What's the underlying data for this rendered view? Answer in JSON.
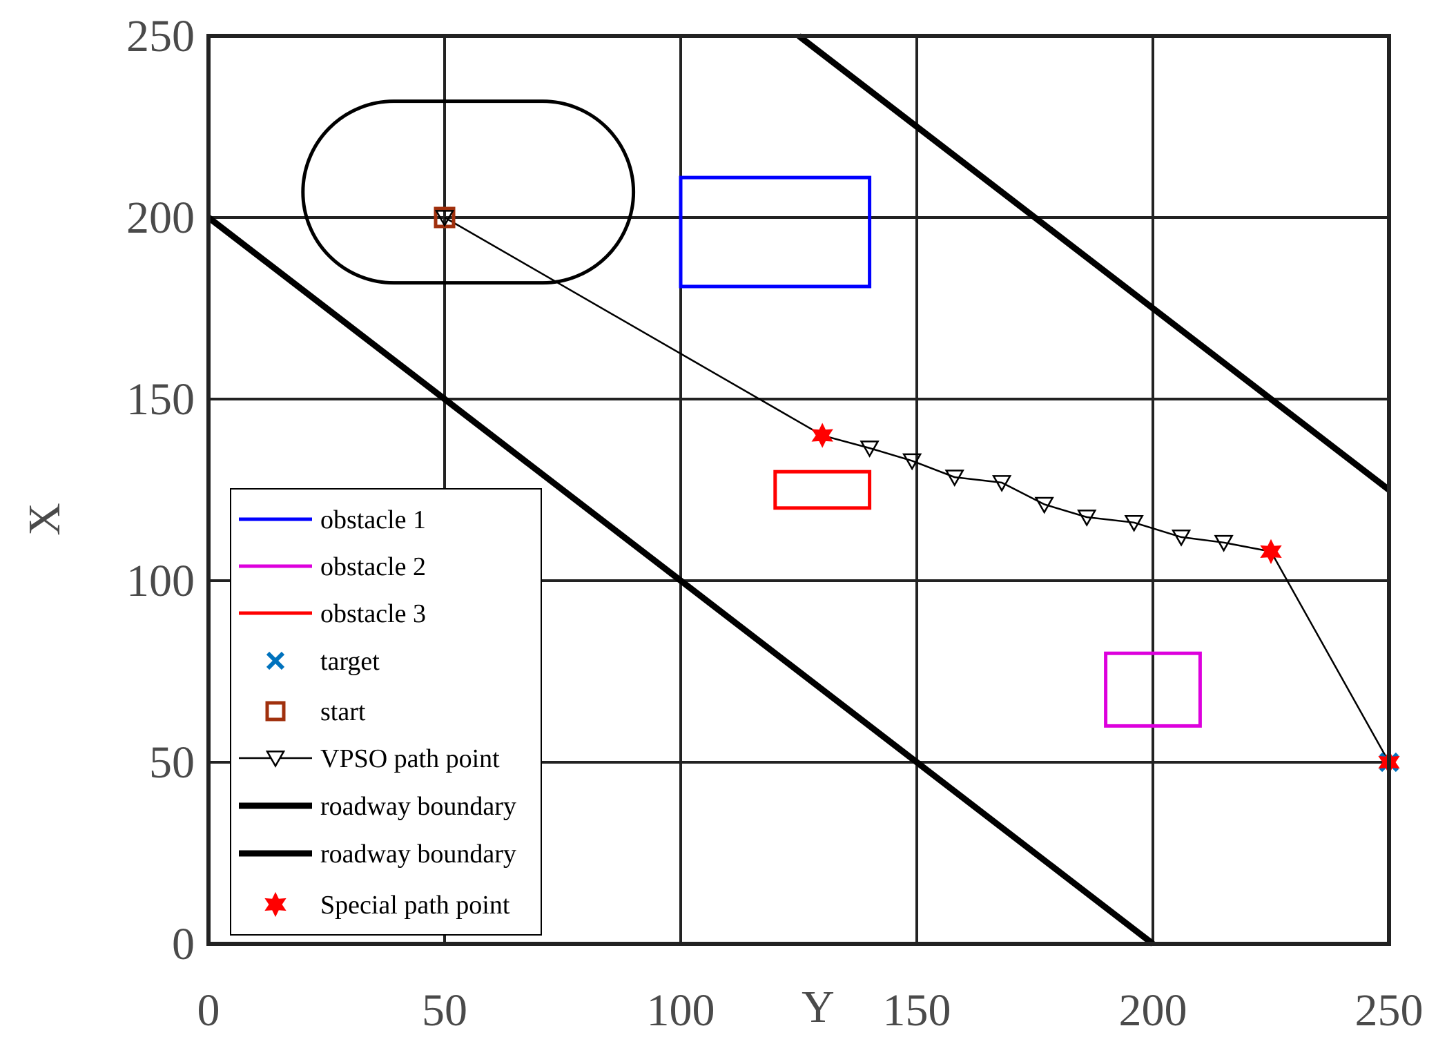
{
  "chart_data": {
    "type": "line",
    "title": "",
    "xlabel": "Y",
    "ylabel": "X",
    "xlim": [
      0,
      250
    ],
    "ylim": [
      0,
      250
    ],
    "xticks": [
      0,
      50,
      100,
      150,
      200,
      250
    ],
    "yticks": [
      0,
      50,
      100,
      150,
      200,
      250
    ],
    "grid": true,
    "legend_position": "lower-left",
    "legend": [
      {
        "key": "obstacle1",
        "label": "obstacle 1",
        "kind": "line",
        "color": "#0000ff"
      },
      {
        "key": "obstacle2",
        "label": "obstacle 2",
        "kind": "line",
        "color": "#dd00dd"
      },
      {
        "key": "obstacle3",
        "label": "obstacle 3",
        "kind": "line",
        "color": "#ff0000"
      },
      {
        "key": "target",
        "label": "target",
        "kind": "x",
        "color": "#0072bd"
      },
      {
        "key": "start",
        "label": "start",
        "kind": "square",
        "color": "#a0300d"
      },
      {
        "key": "path",
        "label": "VPSO path point",
        "kind": "tri",
        "color": "#000000"
      },
      {
        "key": "boundary1",
        "label": "roadway boundary",
        "kind": "thick",
        "color": "#000000"
      },
      {
        "key": "boundary2",
        "label": "roadway boundary",
        "kind": "thick",
        "color": "#000000"
      },
      {
        "key": "special",
        "label": "Special path point",
        "kind": "star",
        "color": "#ff0000"
      }
    ],
    "obstacles": [
      {
        "name": "obstacle 1",
        "color": "#0000ff",
        "y": [
          100,
          140
        ],
        "x": [
          181,
          211
        ]
      },
      {
        "name": "obstacle 2",
        "color": "#dd00dd",
        "y": [
          190,
          210
        ],
        "x": [
          60,
          80
        ]
      },
      {
        "name": "obstacle 3",
        "color": "#ff0000",
        "y": [
          120,
          140
        ],
        "x": [
          120,
          130
        ]
      }
    ],
    "stadium": {
      "y": [
        20,
        90
      ],
      "x": [
        182,
        232
      ]
    },
    "boundaries": [
      {
        "name": "roadway boundary",
        "points": [
          [
            0,
            200
          ],
          [
            200,
            0
          ]
        ]
      },
      {
        "name": "roadway boundary",
        "points": [
          [
            125,
            250
          ],
          [
            250,
            125
          ]
        ]
      }
    ],
    "start": [
      50,
      200
    ],
    "target": [
      250,
      50
    ],
    "path": [
      [
        50,
        200
      ],
      [
        130,
        140
      ],
      [
        140,
        136.5
      ],
      [
        149,
        133
      ],
      [
        158,
        128.5
      ],
      [
        168,
        127
      ],
      [
        177,
        121
      ],
      [
        186,
        117.5
      ],
      [
        196,
        116
      ],
      [
        206,
        112
      ],
      [
        215,
        110.5
      ],
      [
        225,
        108
      ],
      [
        250,
        50
      ]
    ],
    "path_markers": [
      [
        50,
        200
      ],
      [
        140,
        136.5
      ],
      [
        149,
        133
      ],
      [
        158,
        128.5
      ],
      [
        168,
        127
      ],
      [
        177,
        121
      ],
      [
        186,
        117.5
      ],
      [
        196,
        116
      ],
      [
        206,
        112
      ],
      [
        215,
        110.5
      ]
    ],
    "special_points": [
      [
        130,
        140
      ],
      [
        225,
        108
      ],
      [
        250,
        50
      ]
    ]
  }
}
